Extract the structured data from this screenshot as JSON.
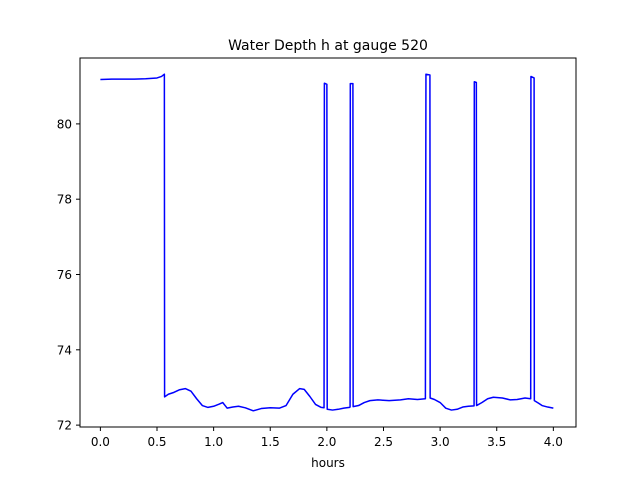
{
  "chart_data": {
    "type": "line",
    "title": "Water Depth h at gauge 520",
    "xlabel": "hours",
    "ylabel": "",
    "xlim": [
      -0.18,
      4.2
    ],
    "ylim": [
      71.95,
      81.75
    ],
    "xticks": [
      0.0,
      0.5,
      1.0,
      1.5,
      2.0,
      2.5,
      3.0,
      3.5,
      4.0
    ],
    "xtick_labels": [
      "0.0",
      "0.5",
      "1.0",
      "1.5",
      "2.0",
      "2.5",
      "3.0",
      "3.5",
      "4.0"
    ],
    "yticks": [
      72,
      74,
      76,
      78,
      80
    ],
    "ytick_labels": [
      "72",
      "74",
      "76",
      "78",
      "80"
    ],
    "grid": false,
    "series": [
      {
        "name": "",
        "color": "#0000ff",
        "points": [
          [
            0.0,
            81.18
          ],
          [
            0.1,
            81.19
          ],
          [
            0.2,
            81.19
          ],
          [
            0.3,
            81.19
          ],
          [
            0.4,
            81.2
          ],
          [
            0.5,
            81.22
          ],
          [
            0.54,
            81.26
          ],
          [
            0.565,
            81.32
          ],
          [
            0.567,
            72.75
          ],
          [
            0.6,
            72.82
          ],
          [
            0.65,
            72.87
          ],
          [
            0.7,
            72.94
          ],
          [
            0.75,
            72.97
          ],
          [
            0.8,
            72.9
          ],
          [
            0.85,
            72.7
          ],
          [
            0.9,
            72.52
          ],
          [
            0.95,
            72.47
          ],
          [
            1.0,
            72.5
          ],
          [
            1.05,
            72.56
          ],
          [
            1.08,
            72.6
          ],
          [
            1.12,
            72.45
          ],
          [
            1.17,
            72.48
          ],
          [
            1.22,
            72.5
          ],
          [
            1.28,
            72.46
          ],
          [
            1.35,
            72.38
          ],
          [
            1.42,
            72.44
          ],
          [
            1.5,
            72.46
          ],
          [
            1.58,
            72.45
          ],
          [
            1.64,
            72.52
          ],
          [
            1.7,
            72.82
          ],
          [
            1.76,
            72.97
          ],
          [
            1.8,
            72.95
          ],
          [
            1.85,
            72.76
          ],
          [
            1.9,
            72.55
          ],
          [
            1.95,
            72.47
          ],
          [
            1.975,
            72.46
          ],
          [
            1.978,
            81.08
          ],
          [
            2.0,
            81.05
          ],
          [
            2.003,
            72.42
          ],
          [
            2.05,
            72.4
          ],
          [
            2.1,
            72.42
          ],
          [
            2.15,
            72.45
          ],
          [
            2.2,
            72.47
          ],
          [
            2.205,
            72.48
          ],
          [
            2.207,
            81.07
          ],
          [
            2.23,
            81.07
          ],
          [
            2.232,
            72.49
          ],
          [
            2.28,
            72.52
          ],
          [
            2.33,
            72.6
          ],
          [
            2.38,
            72.65
          ],
          [
            2.45,
            72.67
          ],
          [
            2.55,
            72.65
          ],
          [
            2.65,
            72.67
          ],
          [
            2.72,
            72.7
          ],
          [
            2.8,
            72.68
          ],
          [
            2.87,
            72.7
          ],
          [
            2.875,
            81.32
          ],
          [
            2.91,
            81.3
          ],
          [
            2.912,
            72.72
          ],
          [
            2.95,
            72.68
          ],
          [
            3.0,
            72.6
          ],
          [
            3.05,
            72.45
          ],
          [
            3.1,
            72.4
          ],
          [
            3.15,
            72.42
          ],
          [
            3.2,
            72.48
          ],
          [
            3.25,
            72.5
          ],
          [
            3.3,
            72.51
          ],
          [
            3.302,
            81.12
          ],
          [
            3.32,
            81.1
          ],
          [
            3.322,
            72.52
          ],
          [
            3.37,
            72.6
          ],
          [
            3.42,
            72.7
          ],
          [
            3.47,
            72.74
          ],
          [
            3.55,
            72.72
          ],
          [
            3.62,
            72.67
          ],
          [
            3.68,
            72.68
          ],
          [
            3.75,
            72.72
          ],
          [
            3.8,
            72.7
          ],
          [
            3.802,
            81.26
          ],
          [
            3.83,
            81.22
          ],
          [
            3.832,
            72.65
          ],
          [
            3.87,
            72.58
          ],
          [
            3.9,
            72.52
          ],
          [
            3.95,
            72.48
          ],
          [
            4.0,
            72.45
          ]
        ]
      }
    ]
  }
}
